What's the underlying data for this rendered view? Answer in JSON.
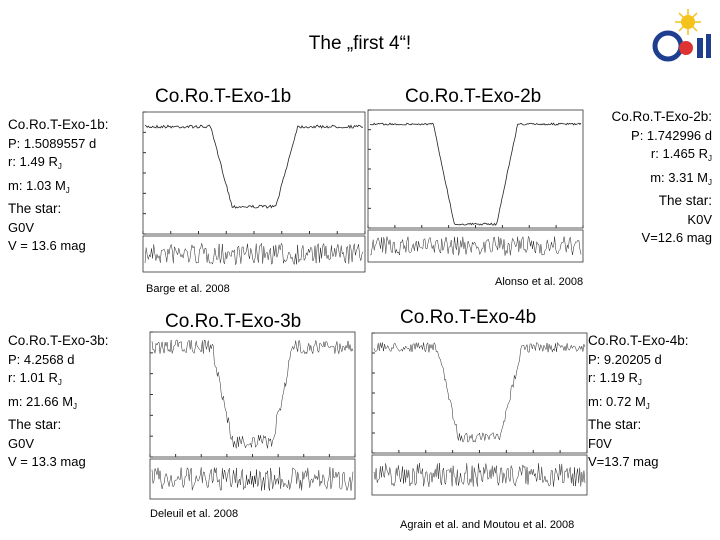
{
  "title": "The „first 4“!",
  "planets": [
    {
      "name": "Co.Ro.T-Exo-1b",
      "heading": "Co.Ro.T-Exo-1b:",
      "period": "P: 1.5089557 d",
      "radius": "r: 1.49 R",
      "mass": "m: 1.03 M",
      "unit_sub": "J",
      "star_heading": "The star:",
      "spectral": "G0V",
      "magnitude": "V = 13.6 mag",
      "citation": "Barge et al. 2008"
    },
    {
      "name": "Co.Ro.T-Exo-2b",
      "heading": "Co.Ro.T-Exo-2b:",
      "period": "P: 1.742996 d",
      "radius": "r: 1.465 R",
      "mass": "m: 3.31 M",
      "unit_sub": "J",
      "star_heading": "The star:",
      "spectral": "K0V",
      "magnitude": "V=12.6 mag",
      "citation": "Alonso et al. 2008"
    },
    {
      "name": "Co.Ro.T-Exo-3b",
      "heading": "Co.Ro.T-Exo-3b:",
      "period": "P: 4.2568 d",
      "radius": "r: 1.01 R",
      "mass": "m: 21.66 M",
      "unit_sub": "J",
      "star_heading": "The star:",
      "spectral": "G0V",
      "magnitude": "V = 13.3 mag",
      "citation": "Deleuil et al. 2008"
    },
    {
      "name": "Co.Ro.T-Exo-4b",
      "heading": "Co.Ro.T-Exo-4b:",
      "period": "P: 9.20205 d",
      "radius": "r: 1.19 R",
      "mass": "m: 0.72 M",
      "unit_sub": "J",
      "star_heading": "The star:",
      "spectral": "F0V",
      "magnitude": "V=13.7 mag",
      "citation": "Agrain et al. and Moutou et al.  2008"
    }
  ]
}
